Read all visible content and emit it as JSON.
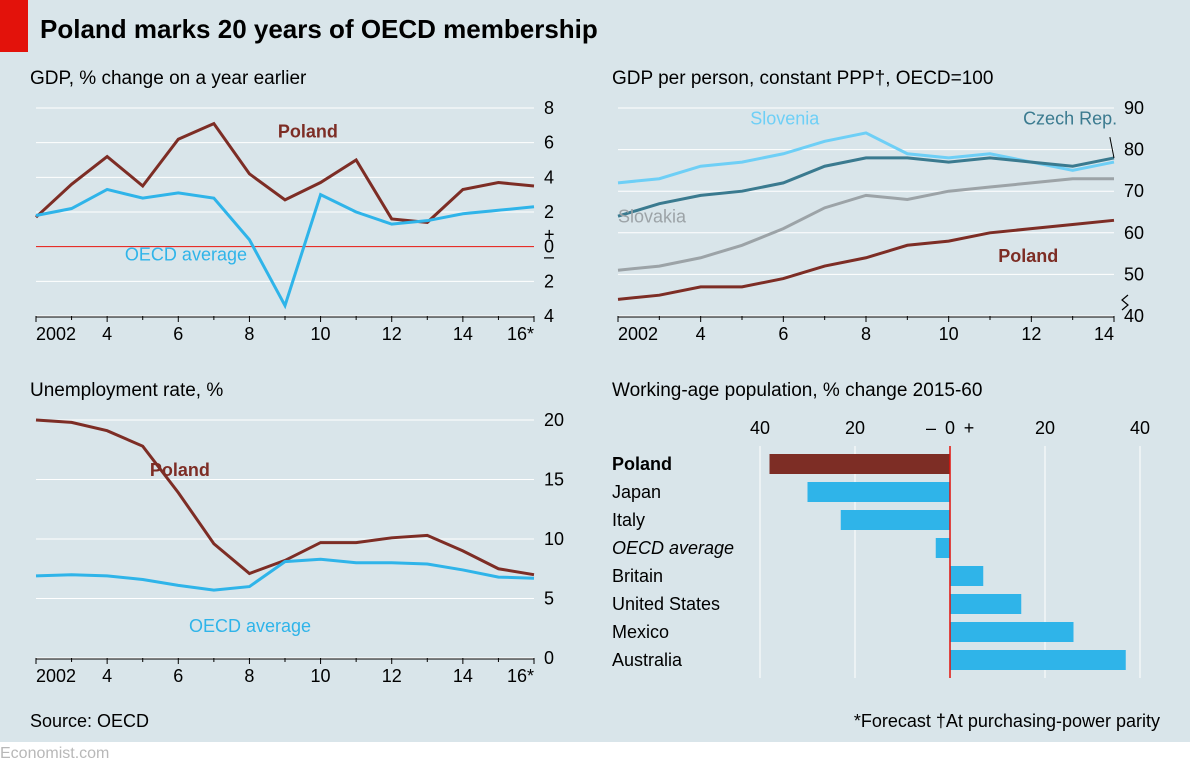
{
  "main_title": "Poland marks 20 years of OECD membership",
  "source_label": "Source: OECD",
  "footnote": "*Forecast   †At purchasing-power parity",
  "watermark": "Economist.com",
  "colors": {
    "background": "#d9e5ea",
    "red_tab": "#e3120b",
    "poland": "#7d2d25",
    "oecd_blue": "#2fb4e9",
    "slovenia": "#6ecff6",
    "czech": "#3a7a8f",
    "slovakia": "#9ca3a7",
    "grid": "#ffffff",
    "zero_line": "#e3120b",
    "bar_blue": "#2fb4e9",
    "bar_dark": "#7d2d25"
  },
  "chart1": {
    "title": "GDP, % change on a year earlier",
    "type": "line",
    "x_start": 2002,
    "x_end": 2016,
    "x_ticks": [
      2002,
      4,
      6,
      8,
      10,
      12,
      14,
      "16*"
    ],
    "x_tick_vals": [
      2002,
      2004,
      2006,
      2008,
      2010,
      2012,
      2014,
      2016
    ],
    "y_min": -4,
    "y_max": 8,
    "y_ticks": [
      8,
      6,
      4,
      2,
      0,
      2,
      4
    ],
    "y_tick_vals": [
      8,
      6,
      4,
      2,
      0,
      -2,
      -4
    ],
    "plus_minus_at": 0,
    "series": {
      "poland": {
        "label": "Poland",
        "label_pos": {
          "x": 2008.8,
          "y": 6.3
        },
        "color": "#7d2d25",
        "weight": 700,
        "data": [
          [
            2002,
            1.7
          ],
          [
            2003,
            3.6
          ],
          [
            2004,
            5.2
          ],
          [
            2005,
            3.5
          ],
          [
            2006,
            6.2
          ],
          [
            2007,
            7.1
          ],
          [
            2008,
            4.2
          ],
          [
            2009,
            2.7
          ],
          [
            2010,
            3.7
          ],
          [
            2011,
            5.0
          ],
          [
            2012,
            1.6
          ],
          [
            2013,
            1.4
          ],
          [
            2014,
            3.3
          ],
          [
            2015,
            3.7
          ],
          [
            2016,
            3.5
          ]
        ]
      },
      "oecd": {
        "label": "OECD average",
        "label_pos": {
          "x": 2004.5,
          "y": -0.8
        },
        "color": "#2fb4e9",
        "weight": 400,
        "data": [
          [
            2002,
            1.8
          ],
          [
            2003,
            2.2
          ],
          [
            2004,
            3.3
          ],
          [
            2005,
            2.8
          ],
          [
            2006,
            3.1
          ],
          [
            2007,
            2.8
          ],
          [
            2008,
            0.4
          ],
          [
            2009,
            -3.4
          ],
          [
            2010,
            3.0
          ],
          [
            2011,
            2.0
          ],
          [
            2012,
            1.3
          ],
          [
            2013,
            1.5
          ],
          [
            2014,
            1.9
          ],
          [
            2015,
            2.1
          ],
          [
            2016,
            2.3
          ]
        ]
      }
    }
  },
  "chart2": {
    "title": "GDP per person, constant PPP†, OECD=100",
    "type": "line",
    "x_start": 2002,
    "x_end": 2014,
    "x_ticks": [
      2002,
      4,
      6,
      8,
      10,
      12,
      14
    ],
    "x_tick_vals": [
      2002,
      2004,
      2006,
      2008,
      2010,
      2012,
      2014
    ],
    "y_min": 40,
    "y_max": 90,
    "y_ticks": [
      90,
      80,
      70,
      60,
      50,
      40
    ],
    "y_tick_vals": [
      90,
      80,
      70,
      60,
      50,
      40
    ],
    "series": {
      "slovenia": {
        "label": "Slovenia",
        "label_pos": {
          "x": 2005.2,
          "y": 86
        },
        "color": "#6ecff6",
        "data": [
          [
            2002,
            72
          ],
          [
            2003,
            73
          ],
          [
            2004,
            76
          ],
          [
            2005,
            77
          ],
          [
            2006,
            79
          ],
          [
            2007,
            82
          ],
          [
            2008,
            84
          ],
          [
            2009,
            79
          ],
          [
            2010,
            78
          ],
          [
            2011,
            79
          ],
          [
            2012,
            77
          ],
          [
            2013,
            75
          ],
          [
            2014,
            77
          ]
        ]
      },
      "czech": {
        "label": "Czech Rep.",
        "label_pos": {
          "x": 2011.8,
          "y": 86
        },
        "color": "#3a7a8f",
        "pointer": {
          "from": {
            "x": 2013.9,
            "y": 83
          },
          "to": {
            "x": 2014,
            "y": 78
          }
        },
        "data": [
          [
            2002,
            64
          ],
          [
            2003,
            67
          ],
          [
            2004,
            69
          ],
          [
            2005,
            70
          ],
          [
            2006,
            72
          ],
          [
            2007,
            76
          ],
          [
            2008,
            78
          ],
          [
            2009,
            78
          ],
          [
            2010,
            77
          ],
          [
            2011,
            78
          ],
          [
            2012,
            77
          ],
          [
            2013,
            76
          ],
          [
            2014,
            78
          ]
        ]
      },
      "slovakia": {
        "label": "Slovakia",
        "label_pos": {
          "x": 2002,
          "y": 62.5
        },
        "color": "#9ca3a7",
        "data": [
          [
            2002,
            51
          ],
          [
            2003,
            52
          ],
          [
            2004,
            54
          ],
          [
            2005,
            57
          ],
          [
            2006,
            61
          ],
          [
            2007,
            66
          ],
          [
            2008,
            69
          ],
          [
            2009,
            68
          ],
          [
            2010,
            70
          ],
          [
            2011,
            71
          ],
          [
            2012,
            72
          ],
          [
            2013,
            73
          ],
          [
            2014,
            73
          ]
        ]
      },
      "poland": {
        "label": "Poland",
        "label_pos": {
          "x": 2011.2,
          "y": 53
        },
        "color": "#7d2d25",
        "weight": 700,
        "data": [
          [
            2002,
            44
          ],
          [
            2003,
            45
          ],
          [
            2004,
            47
          ],
          [
            2005,
            47
          ],
          [
            2006,
            49
          ],
          [
            2007,
            52
          ],
          [
            2008,
            54
          ],
          [
            2009,
            57
          ],
          [
            2010,
            58
          ],
          [
            2011,
            60
          ],
          [
            2012,
            61
          ],
          [
            2013,
            62
          ],
          [
            2014,
            63
          ]
        ]
      }
    }
  },
  "chart3": {
    "title": "Unemployment rate, %",
    "type": "line",
    "x_start": 2002,
    "x_end": 2016,
    "x_ticks": [
      2002,
      4,
      6,
      8,
      10,
      12,
      14,
      "16*"
    ],
    "x_tick_vals": [
      2002,
      2004,
      2006,
      2008,
      2010,
      2012,
      2014,
      2016
    ],
    "y_min": 0,
    "y_max": 20,
    "y_ticks": [
      20,
      15,
      10,
      5,
      0
    ],
    "y_tick_vals": [
      20,
      15,
      10,
      5,
      0
    ],
    "series": {
      "poland": {
        "label": "Poland",
        "label_pos": {
          "x": 2005.2,
          "y": 15.3
        },
        "color": "#7d2d25",
        "weight": 700,
        "data": [
          [
            2002,
            20.0
          ],
          [
            2003,
            19.8
          ],
          [
            2004,
            19.1
          ],
          [
            2005,
            17.8
          ],
          [
            2006,
            13.9
          ],
          [
            2007,
            9.6
          ],
          [
            2008,
            7.1
          ],
          [
            2009,
            8.2
          ],
          [
            2010,
            9.7
          ],
          [
            2011,
            9.7
          ],
          [
            2012,
            10.1
          ],
          [
            2013,
            10.3
          ],
          [
            2014,
            9.0
          ],
          [
            2015,
            7.5
          ],
          [
            2016,
            7.0
          ]
        ]
      },
      "oecd": {
        "label": "OECD average",
        "label_pos": {
          "x": 2006.3,
          "y": 2.2
        },
        "color": "#2fb4e9",
        "weight": 400,
        "data": [
          [
            2002,
            6.9
          ],
          [
            2003,
            7.0
          ],
          [
            2004,
            6.9
          ],
          [
            2005,
            6.6
          ],
          [
            2006,
            6.1
          ],
          [
            2007,
            5.7
          ],
          [
            2008,
            6.0
          ],
          [
            2009,
            8.1
          ],
          [
            2010,
            8.3
          ],
          [
            2011,
            8.0
          ],
          [
            2012,
            8.0
          ],
          [
            2013,
            7.9
          ],
          [
            2014,
            7.4
          ],
          [
            2015,
            6.8
          ],
          [
            2016,
            6.7
          ]
        ]
      }
    }
  },
  "chart4": {
    "title": "Working-age population, % change 2015-60",
    "type": "bar_diverging",
    "x_min": -40,
    "x_max": 40,
    "x_ticks": [
      "40",
      "20",
      "–",
      "0",
      "+",
      "20",
      "40"
    ],
    "x_tick_vals": [
      -40,
      -20,
      -4,
      0,
      4,
      20,
      40
    ],
    "zero_line": true,
    "categories": [
      {
        "label": "Poland",
        "value": -38,
        "color": "#7d2d25",
        "bold": true
      },
      {
        "label": "Japan",
        "value": -30,
        "color": "#2fb4e9"
      },
      {
        "label": "Italy",
        "value": -23,
        "color": "#2fb4e9"
      },
      {
        "label": "OECD average",
        "value": -3,
        "color": "#2fb4e9",
        "italic": true
      },
      {
        "label": "Britain",
        "value": 7,
        "color": "#2fb4e9"
      },
      {
        "label": "United States",
        "value": 15,
        "color": "#2fb4e9"
      },
      {
        "label": "Mexico",
        "value": 26,
        "color": "#2fb4e9"
      },
      {
        "label": "Australia",
        "value": 37,
        "color": "#2fb4e9"
      }
    ]
  }
}
